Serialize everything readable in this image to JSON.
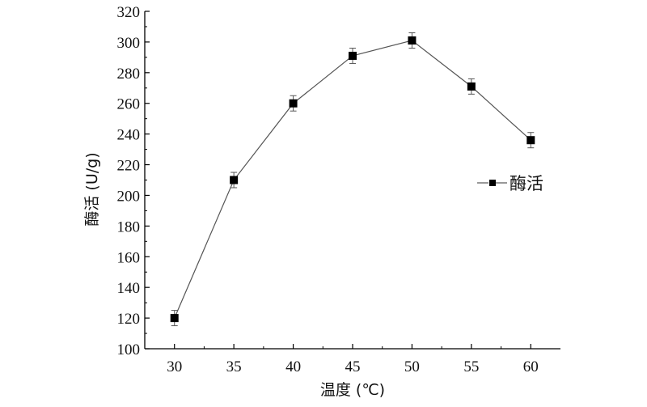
{
  "chart_data": {
    "type": "line",
    "xlabel": "温度 (℃)",
    "ylabel": "酶活 (U/g)",
    "xlim": [
      27.5,
      62.5
    ],
    "ylim": [
      100,
      320
    ],
    "x_ticks": [
      30,
      35,
      40,
      45,
      50,
      55,
      60
    ],
    "y_ticks": [
      100,
      120,
      140,
      160,
      180,
      200,
      220,
      240,
      260,
      280,
      300,
      320
    ],
    "grid": false,
    "legend_position": "right",
    "series": [
      {
        "name": "酶活",
        "color": "#000000",
        "marker": "square",
        "x": [
          30,
          35,
          40,
          45,
          50,
          55,
          60
        ],
        "y": [
          120,
          210,
          260,
          291,
          301,
          271,
          236
        ],
        "error": [
          5,
          5,
          5,
          5,
          5,
          5,
          5
        ]
      }
    ]
  }
}
